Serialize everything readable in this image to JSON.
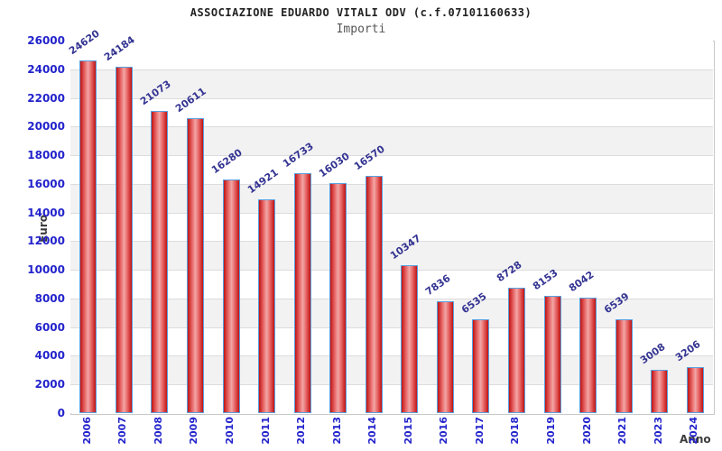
{
  "header": {
    "title": "ASSOCIAZIONE EDUARDO VITALI ODV (c.f.07101160633)",
    "subtitle": "Importi"
  },
  "chart_data": {
    "type": "bar",
    "title": "ASSOCIAZIONE EDUARDO VITALI ODV (c.f.07101160633)",
    "subtitle": "Importi",
    "xlabel": "Anno",
    "ylabel": "Euro",
    "categories": [
      "2006",
      "2007",
      "2008",
      "2009",
      "2010",
      "2011",
      "2012",
      "2013",
      "2014",
      "2015",
      "2016",
      "2017",
      "2018",
      "2019",
      "2020",
      "2021",
      "2023",
      "2024"
    ],
    "values": [
      24620,
      24184,
      21073,
      20611,
      16280,
      14921,
      16733,
      16030,
      16570,
      10347,
      7836,
      6535,
      8728,
      8153,
      8042,
      6539,
      3008,
      3206
    ],
    "ylim": [
      0,
      26000
    ],
    "ytick_step": 2000,
    "grid": true,
    "legend": "none",
    "colors": {
      "tick_label": "#2323cc",
      "value_label": "#333392",
      "axis_title": "#3c3c3c",
      "grid_line": "#dcdcdc",
      "band_even": "#ffffff",
      "band_odd": "#f2f2f2",
      "bar_edge_fill": "#c01414",
      "bar_mid_fill": "#e96a6a",
      "bar_center_fill": "#f2a6a6",
      "bar_border": "#58a0e0",
      "plot_border": "#c9c9c9"
    }
  }
}
